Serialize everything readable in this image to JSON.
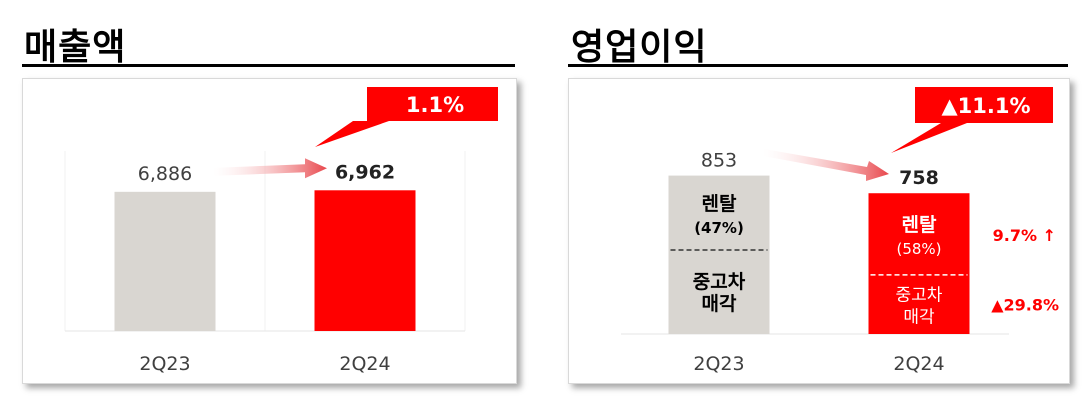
{
  "colors": {
    "prev_bar": "#d9d6d1",
    "curr_bar": "#ff0000",
    "callout": "#ff0000",
    "arrow": "#e8474c",
    "text": "#404040",
    "up_text": "#ff0000"
  },
  "panels": [
    {
      "title": "매출액"
    },
    {
      "title": "영업이익"
    }
  ],
  "chart_data": [
    {
      "type": "bar",
      "title": "매출액",
      "categories": [
        "2Q23",
        "2Q24"
      ],
      "values": [
        6886,
        6962
      ],
      "value_labels": [
        "6,886",
        "6,962"
      ],
      "ylim": [
        0,
        9500
      ],
      "grid": false,
      "annotation": {
        "text": "1.1%"
      }
    },
    {
      "type": "bar",
      "title": "영업이익",
      "categories": [
        "2Q23",
        "2Q24"
      ],
      "values": [
        853,
        758
      ],
      "value_labels": [
        "853",
        "758"
      ],
      "ylim": [
        0,
        1050
      ],
      "grid": false,
      "annotation": {
        "text": "▲11.1%"
      },
      "segments": [
        {
          "label": "렌탈",
          "shares": [
            "(47%)",
            "(58%)"
          ],
          "change": "9.7% ↑"
        },
        {
          "label_lines": [
            "중고차",
            "매각"
          ],
          "change": "▲29.8%"
        }
      ]
    }
  ]
}
